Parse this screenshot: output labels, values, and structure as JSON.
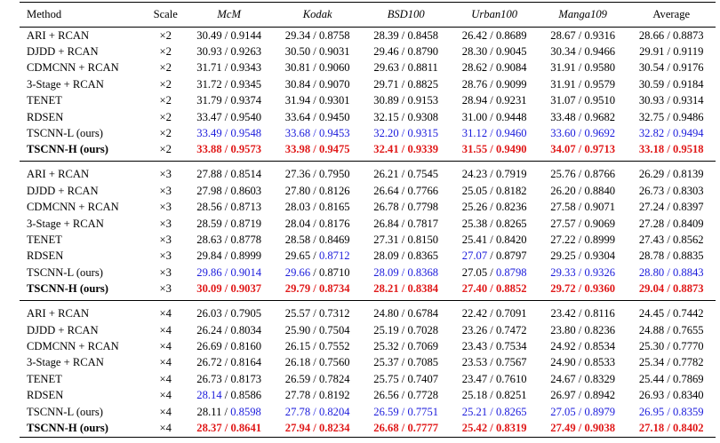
{
  "headers": [
    "Method",
    "Scale",
    "McM",
    "Kodak",
    "BSD100",
    "Urban100",
    "Manga109",
    "Average"
  ],
  "groups": [
    {
      "scale": "×2",
      "rows": [
        {
          "method": "ARI + RCAN",
          "cells": [
            [
              "30.49",
              "0.9144"
            ],
            [
              "29.34",
              "0.8758"
            ],
            [
              "28.39",
              "0.8458"
            ],
            [
              "26.42",
              "0.8689"
            ],
            [
              "28.67",
              "0.9316"
            ],
            [
              "28.66",
              "0.8873"
            ]
          ]
        },
        {
          "method": "DJDD + RCAN",
          "cells": [
            [
              "30.93",
              "0.9263"
            ],
            [
              "30.50",
              "0.9031"
            ],
            [
              "29.46",
              "0.8790"
            ],
            [
              "28.30",
              "0.9045"
            ],
            [
              "30.34",
              "0.9466"
            ],
            [
              "29.91",
              "0.9119"
            ]
          ]
        },
        {
          "method": "CDMCNN + RCAN",
          "cells": [
            [
              "31.71",
              "0.9343"
            ],
            [
              "30.81",
              "0.9060"
            ],
            [
              "29.63",
              "0.8811"
            ],
            [
              "28.62",
              "0.9084"
            ],
            [
              "31.91",
              "0.9580"
            ],
            [
              "30.54",
              "0.9176"
            ]
          ]
        },
        {
          "method": "3-Stage + RCAN",
          "cells": [
            [
              "31.72",
              "0.9345"
            ],
            [
              "30.84",
              "0.9070"
            ],
            [
              "29.71",
              "0.8825"
            ],
            [
              "28.76",
              "0.9099"
            ],
            [
              "31.91",
              "0.9579"
            ],
            [
              "30.59",
              "0.9184"
            ]
          ]
        },
        {
          "method": "TENET",
          "cells": [
            [
              "31.79",
              "0.9374"
            ],
            [
              "31.94",
              "0.9301"
            ],
            [
              "30.89",
              "0.9153"
            ],
            [
              "28.94",
              "0.9231"
            ],
            [
              "31.07",
              "0.9510"
            ],
            [
              "30.93",
              "0.9314"
            ]
          ]
        },
        {
          "method": "RDSEN",
          "cells": [
            [
              "33.47",
              "0.9540"
            ],
            [
              "33.64",
              "0.9450"
            ],
            [
              "32.15",
              "0.9308"
            ],
            [
              "31.00",
              "0.9448"
            ],
            [
              "33.48",
              "0.9682"
            ],
            [
              "32.75",
              "0.9486"
            ]
          ]
        },
        {
          "method": "TSCNN-L (ours)",
          "cells": [
            [
              "33.49",
              "0.9548"
            ],
            [
              "33.68",
              "0.9453"
            ],
            [
              "32.20",
              "0.9315"
            ],
            [
              "31.12",
              "0.9460"
            ],
            [
              "33.60",
              "0.9692"
            ],
            [
              "32.82",
              "0.9494"
            ]
          ],
          "styles": [
            [
              "b",
              "b"
            ],
            [
              "b",
              "b"
            ],
            [
              "b",
              "b"
            ],
            [
              "b",
              "b"
            ],
            [
              "b",
              "b"
            ],
            [
              "b",
              "b"
            ]
          ]
        },
        {
          "method": "TSCNN-H (ours)",
          "bold": true,
          "cells": [
            [
              "33.88",
              "0.9573"
            ],
            [
              "33.98",
              "0.9475"
            ],
            [
              "32.41",
              "0.9339"
            ],
            [
              "31.55",
              "0.9490"
            ],
            [
              "34.07",
              "0.9713"
            ],
            [
              "33.18",
              "0.9518"
            ]
          ],
          "styles": [
            [
              "r",
              "r"
            ],
            [
              "r",
              "r"
            ],
            [
              "r",
              "r"
            ],
            [
              "r",
              "r"
            ],
            [
              "r",
              "r"
            ],
            [
              "r",
              "r"
            ]
          ]
        }
      ]
    },
    {
      "scale": "×3",
      "rows": [
        {
          "method": "ARI + RCAN",
          "cells": [
            [
              "27.88",
              "0.8514"
            ],
            [
              "27.36",
              "0.7950"
            ],
            [
              "26.21",
              "0.7545"
            ],
            [
              "24.23",
              "0.7919"
            ],
            [
              "25.76",
              "0.8766"
            ],
            [
              "26.29",
              "0.8139"
            ]
          ]
        },
        {
          "method": "DJDD + RCAN",
          "cells": [
            [
              "27.98",
              "0.8603"
            ],
            [
              "27.80",
              "0.8126"
            ],
            [
              "26.64",
              "0.7766"
            ],
            [
              "25.05",
              "0.8182"
            ],
            [
              "26.20",
              "0.8840"
            ],
            [
              "26.73",
              "0.8303"
            ]
          ]
        },
        {
          "method": "CDMCNN + RCAN",
          "cells": [
            [
              "28.56",
              "0.8713"
            ],
            [
              "28.03",
              "0.8165"
            ],
            [
              "26.78",
              "0.7798"
            ],
            [
              "25.26",
              "0.8236"
            ],
            [
              "27.58",
              "0.9071"
            ],
            [
              "27.24",
              "0.8397"
            ]
          ]
        },
        {
          "method": "3-Stage + RCAN",
          "cells": [
            [
              "28.59",
              "0.8719"
            ],
            [
              "28.04",
              "0.8176"
            ],
            [
              "26.84",
              "0.7817"
            ],
            [
              "25.38",
              "0.8265"
            ],
            [
              "27.57",
              "0.9069"
            ],
            [
              "27.28",
              "0.8409"
            ]
          ]
        },
        {
          "method": "TENET",
          "cells": [
            [
              "28.63",
              "0.8778"
            ],
            [
              "28.58",
              "0.8469"
            ],
            [
              "27.31",
              "0.8150"
            ],
            [
              "25.41",
              "0.8420"
            ],
            [
              "27.22",
              "0.8999"
            ],
            [
              "27.43",
              "0.8562"
            ]
          ]
        },
        {
          "method": "RDSEN",
          "cells": [
            [
              "29.84",
              "0.8999"
            ],
            [
              "29.65",
              "0.8712"
            ],
            [
              "28.09",
              "0.8365"
            ],
            [
              "27.07",
              "0.8797"
            ],
            [
              "29.25",
              "0.9304"
            ],
            [
              "28.78",
              "0.8835"
            ]
          ],
          "styles": [
            [
              "",
              ""
            ],
            [
              "",
              "b"
            ],
            [
              "",
              ""
            ],
            [
              "b",
              ""
            ],
            [
              "",
              ""
            ],
            [
              "",
              ""
            ]
          ]
        },
        {
          "method": "TSCNN-L (ours)",
          "cells": [
            [
              "29.86",
              "0.9014"
            ],
            [
              "29.66",
              "0.8710"
            ],
            [
              "28.09",
              "0.8368"
            ],
            [
              "27.05",
              "0.8798"
            ],
            [
              "29.33",
              "0.9326"
            ],
            [
              "28.80",
              "0.8843"
            ]
          ],
          "styles": [
            [
              "b",
              "b"
            ],
            [
              "b",
              ""
            ],
            [
              "b",
              "b"
            ],
            [
              "",
              "b"
            ],
            [
              "b",
              "b"
            ],
            [
              "b",
              "b"
            ]
          ]
        },
        {
          "method": "TSCNN-H (ours)",
          "bold": true,
          "cells": [
            [
              "30.09",
              "0.9037"
            ],
            [
              "29.79",
              "0.8734"
            ],
            [
              "28.21",
              "0.8384"
            ],
            [
              "27.40",
              "0.8852"
            ],
            [
              "29.72",
              "0.9360"
            ],
            [
              "29.04",
              "0.8873"
            ]
          ],
          "styles": [
            [
              "r",
              "r"
            ],
            [
              "r",
              "r"
            ],
            [
              "r",
              "r"
            ],
            [
              "r",
              "r"
            ],
            [
              "r",
              "r"
            ],
            [
              "r",
              "r"
            ]
          ]
        }
      ]
    },
    {
      "scale": "×4",
      "rows": [
        {
          "method": "ARI + RCAN",
          "cells": [
            [
              "26.03",
              "0.7905"
            ],
            [
              "25.57",
              "0.7312"
            ],
            [
              "24.80",
              "0.6784"
            ],
            [
              "22.42",
              "0.7091"
            ],
            [
              "23.42",
              "0.8116"
            ],
            [
              "24.45",
              "0.7442"
            ]
          ]
        },
        {
          "method": "DJDD + RCAN",
          "cells": [
            [
              "26.24",
              "0.8034"
            ],
            [
              "25.90",
              "0.7504"
            ],
            [
              "25.19",
              "0.7028"
            ],
            [
              "23.26",
              "0.7472"
            ],
            [
              "23.80",
              "0.8236"
            ],
            [
              "24.88",
              "0.7655"
            ]
          ]
        },
        {
          "method": "CDMCNN + RCAN",
          "cells": [
            [
              "26.69",
              "0.8160"
            ],
            [
              "26.15",
              "0.7552"
            ],
            [
              "25.32",
              "0.7069"
            ],
            [
              "23.43",
              "0.7534"
            ],
            [
              "24.92",
              "0.8534"
            ],
            [
              "25.30",
              "0.7770"
            ]
          ]
        },
        {
          "method": "3-Stage + RCAN",
          "cells": [
            [
              "26.72",
              "0.8164"
            ],
            [
              "26.18",
              "0.7560"
            ],
            [
              "25.37",
              "0.7085"
            ],
            [
              "23.53",
              "0.7567"
            ],
            [
              "24.90",
              "0.8533"
            ],
            [
              "25.34",
              "0.7782"
            ]
          ]
        },
        {
          "method": "TENET",
          "cells": [
            [
              "26.73",
              "0.8173"
            ],
            [
              "26.59",
              "0.7824"
            ],
            [
              "25.75",
              "0.7407"
            ],
            [
              "23.47",
              "0.7610"
            ],
            [
              "24.67",
              "0.8329"
            ],
            [
              "25.44",
              "0.7869"
            ]
          ]
        },
        {
          "method": "RDSEN",
          "cells": [
            [
              "28.14",
              "0.8586"
            ],
            [
              "27.78",
              "0.8192"
            ],
            [
              "26.56",
              "0.7728"
            ],
            [
              "25.18",
              "0.8251"
            ],
            [
              "26.97",
              "0.8942"
            ],
            [
              "26.93",
              "0.8340"
            ]
          ],
          "styles": [
            [
              "b",
              ""
            ],
            [
              "",
              ""
            ],
            [
              "",
              ""
            ],
            [
              "",
              ""
            ],
            [
              "",
              ""
            ],
            [
              "",
              ""
            ]
          ]
        },
        {
          "method": "TSCNN-L (ours)",
          "cells": [
            [
              "28.11",
              "0.8598"
            ],
            [
              "27.78",
              "0.8204"
            ],
            [
              "26.59",
              "0.7751"
            ],
            [
              "25.21",
              "0.8265"
            ],
            [
              "27.05",
              "0.8979"
            ],
            [
              "26.95",
              "0.8359"
            ]
          ],
          "styles": [
            [
              "",
              "b"
            ],
            [
              "b",
              "b"
            ],
            [
              "b",
              "b"
            ],
            [
              "b",
              "b"
            ],
            [
              "b",
              "b"
            ],
            [
              "b",
              "b"
            ]
          ]
        },
        {
          "method": "TSCNN-H (ours)",
          "bold": true,
          "cells": [
            [
              "28.37",
              "0.8641"
            ],
            [
              "27.94",
              "0.8234"
            ],
            [
              "26.68",
              "0.7777"
            ],
            [
              "25.42",
              "0.8319"
            ],
            [
              "27.49",
              "0.9038"
            ],
            [
              "27.18",
              "0.8402"
            ]
          ],
          "styles": [
            [
              "r",
              "r"
            ],
            [
              "r",
              "r"
            ],
            [
              "r",
              "r"
            ],
            [
              "r",
              "r"
            ],
            [
              "r",
              "r"
            ],
            [
              "r",
              "r"
            ]
          ]
        }
      ]
    }
  ],
  "colors": {
    "best": "#e01818",
    "second": "#1a1adb"
  }
}
